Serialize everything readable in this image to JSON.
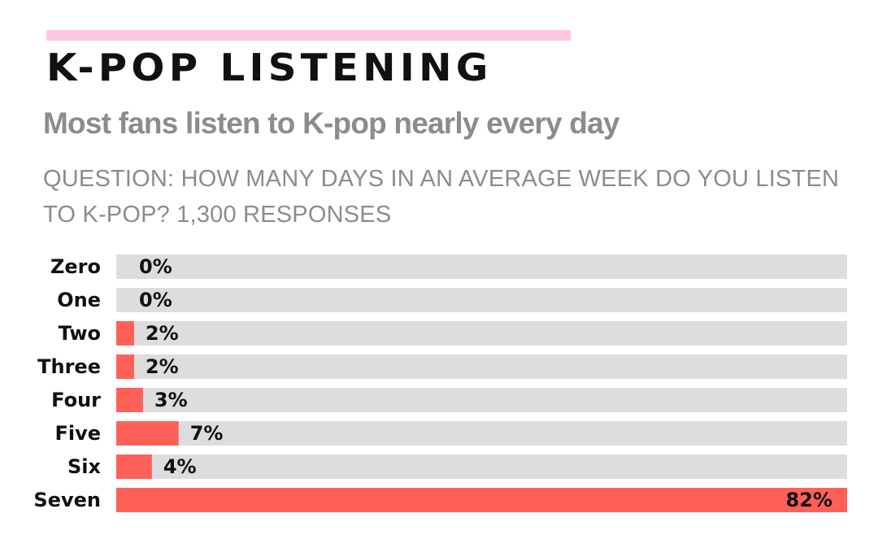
{
  "header": {
    "title": "K-POP LISTENING",
    "subtitle": "Most fans listen to K-pop nearly every day",
    "question": "QUESTION: HOW MANY DAYS IN AN AVERAGE WEEK DO YOU LISTEN TO K-POP? 1,300 RESPONSES"
  },
  "colors": {
    "accent": "#ffc8e2",
    "bar": "#ff6159",
    "track": "#dddde0"
  },
  "chart_data": {
    "type": "bar",
    "orientation": "horizontal",
    "categories": [
      "Zero",
      "One",
      "Two",
      "Three",
      "Four",
      "Five",
      "Six",
      "Seven"
    ],
    "values": [
      0,
      0,
      2,
      2,
      3,
      7,
      4,
      82
    ],
    "value_labels": [
      "0%",
      "0%",
      "2%",
      "2%",
      "3%",
      "7%",
      "4%",
      "82%"
    ],
    "unit": "%",
    "xlim": [
      0,
      82
    ],
    "grid": false,
    "legend": "none"
  }
}
